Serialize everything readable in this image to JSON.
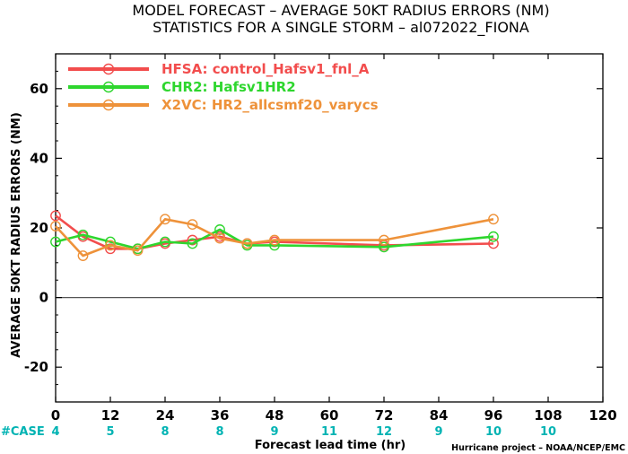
{
  "colors": {
    "HFSA": "#f24d4d",
    "CHR2": "#2ed62e",
    "X2VC": "#ee923a",
    "zero_line": "#555555",
    "case_text": "#00b3b3"
  },
  "chart_data": {
    "type": "line",
    "title": "MODEL FORECAST – AVERAGE 50KT RADIUS ERRORS (NM)",
    "subtitle": "STATISTICS FOR A SINGLE STORM – al072022_FIONA",
    "xlabel": "Forecast lead time (hr)",
    "ylabel": "AVERAGE 50KT RADIUS ERRORS (NM)",
    "xlim": [
      0,
      120
    ],
    "ylim": [
      -30,
      70
    ],
    "xticks": [
      "0",
      "12",
      "24",
      "36",
      "48",
      "60",
      "72",
      "84",
      "96",
      "108",
      "120"
    ],
    "yticks": [
      "-20",
      "0",
      "20",
      "40",
      "60"
    ],
    "legend_position": "top-left",
    "series": [
      {
        "name": "HFSA: control_Hafsv1_fnl_A",
        "key": "HFSA",
        "x": [
          0,
          6,
          12,
          18,
          24,
          30,
          36,
          42,
          48,
          72,
          96
        ],
        "y": [
          23.5,
          17.5,
          14,
          14,
          15.5,
          16.5,
          17.5,
          15.5,
          16,
          15,
          15.5
        ]
      },
      {
        "name": "CHR2: Hafsv1HR2",
        "key": "CHR2",
        "x": [
          0,
          6,
          12,
          18,
          24,
          30,
          36,
          42,
          48,
          72,
          96
        ],
        "y": [
          16,
          18,
          16,
          14,
          16,
          15.5,
          19.5,
          15,
          15,
          14.5,
          17.5
        ]
      },
      {
        "name": "X2VC: HR2_allcsmf20_varycs",
        "key": "X2VC",
        "x": [
          0,
          6,
          12,
          18,
          24,
          30,
          36,
          42,
          48,
          72,
          96
        ],
        "y": [
          20.5,
          12,
          15,
          13.5,
          22.5,
          21,
          17,
          15.5,
          16.5,
          16.5,
          22.5
        ]
      }
    ],
    "case_label": "#CASE",
    "cases": [
      {
        "x": 0,
        "n": "4"
      },
      {
        "x": 12,
        "n": "5"
      },
      {
        "x": 24,
        "n": "8"
      },
      {
        "x": 36,
        "n": "8"
      },
      {
        "x": 48,
        "n": "9"
      },
      {
        "x": 60,
        "n": "11"
      },
      {
        "x": 72,
        "n": "12"
      },
      {
        "x": 84,
        "n": "9"
      },
      {
        "x": 96,
        "n": "10"
      },
      {
        "x": 108,
        "n": "10"
      }
    ],
    "credit": "Hurricane project – NOAA/NCEP/EMC"
  }
}
